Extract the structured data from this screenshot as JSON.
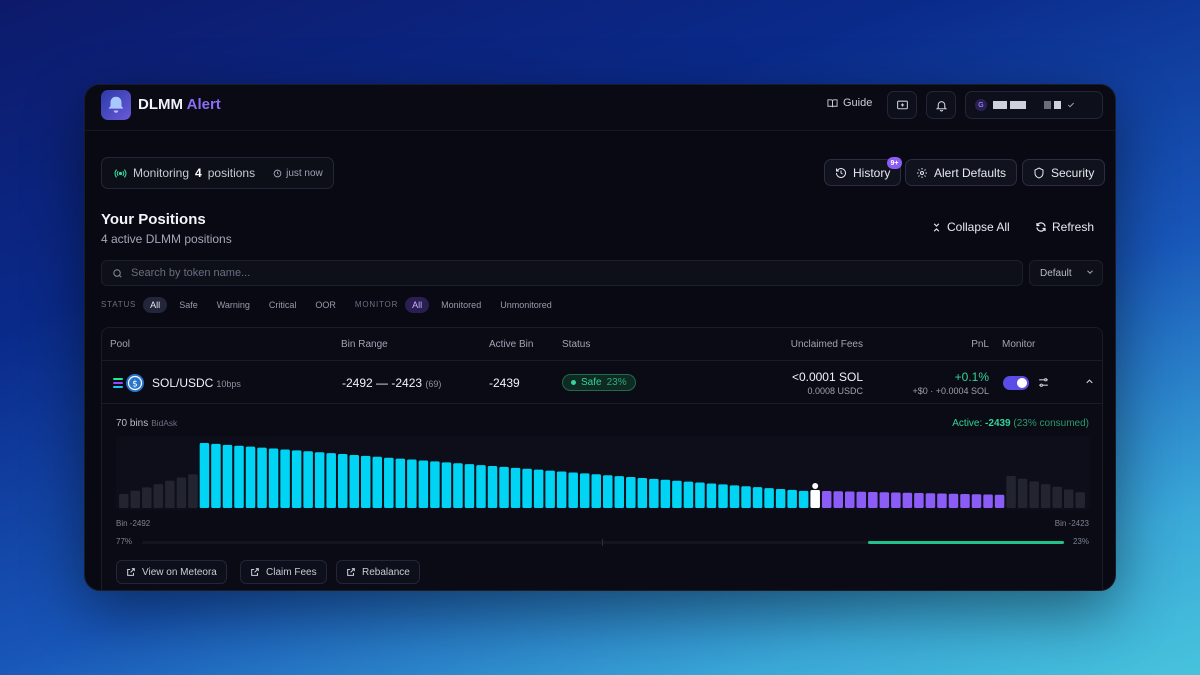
{
  "app": {
    "name": "DLMM",
    "name_accent": "Alert"
  },
  "topbar": {
    "guide_label": "Guide",
    "wallet_initial": "G"
  },
  "monitor": {
    "prefix": "Monitoring",
    "count": "4",
    "suffix": "positions",
    "updated": "just now"
  },
  "header_buttons": {
    "history": "History",
    "history_badge": "9+",
    "alert_defaults": "Alert Defaults",
    "security": "Security"
  },
  "section": {
    "title": "Your Positions",
    "subtitle": "4 active DLMM positions",
    "collapse_all": "Collapse All",
    "refresh": "Refresh"
  },
  "search": {
    "placeholder": "Search by token name..."
  },
  "sort": {
    "selected": "Default"
  },
  "filters": {
    "status_label": "STATUS",
    "status_options": [
      "All",
      "Safe",
      "Warning",
      "Critical",
      "OOR"
    ],
    "monitor_label": "MONITOR",
    "monitor_options": [
      "All",
      "Monitored",
      "Unmonitored"
    ]
  },
  "table": {
    "columns": [
      "Pool",
      "Bin Range",
      "Active Bin",
      "Status",
      "Unclaimed Fees",
      "PnL",
      "Monitor"
    ],
    "row": {
      "pair": "SOL/USDC",
      "fee_tier": "10bps",
      "bin_range": "-2492 — -2423",
      "bin_count": "(69)",
      "active_bin": "-2439",
      "status": "Safe",
      "status_pct": "23%",
      "fees_primary": "<0.0001 SOL",
      "fees_secondary": "0.0008 USDC",
      "pnl_pct": "+0.1%",
      "pnl_detail": "+$0 · +0.0004 SOL",
      "monitor_on": true
    }
  },
  "details": {
    "bins": "70 bins",
    "strategy": "BidAsk",
    "active_label": "Active:",
    "active_value": "-2439",
    "active_consumed": "(23% consumed)",
    "left_label": "Bin -2492",
    "right_label": "Bin -2423",
    "left_pct": "77%",
    "right_pct": "23%",
    "consumed_fraction": 0.23,
    "actions": [
      "View on Meteora",
      "Claim Fees",
      "Rebalance"
    ]
  },
  "colors": {
    "accent": "#8b6cf5",
    "safe": "#34d399",
    "cyan": "#00d4f5",
    "purple": "#8b5cf6"
  }
}
